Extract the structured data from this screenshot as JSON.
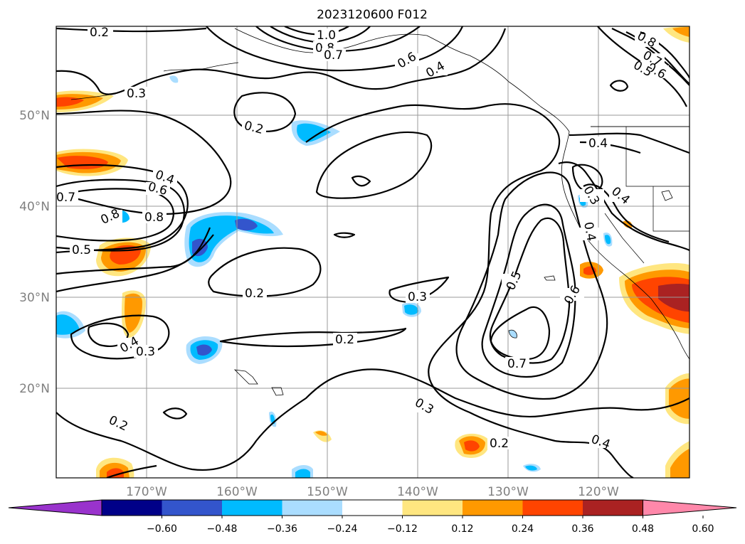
{
  "title": "2023120600 F012",
  "map": {
    "lat_labels": [
      "50°N",
      "40°N",
      "30°N",
      "20°N"
    ],
    "lon_labels": [
      "170°W",
      "160°W",
      "150°W",
      "140°W",
      "130°W",
      "120°W"
    ],
    "gridlines": true
  },
  "contour_labels": [
    "0.2",
    "1.0",
    "0.8",
    "0.7",
    "0.6",
    "0.4",
    "0.3",
    "0.2",
    "0.4",
    "0.6",
    "0.7",
    "0.8",
    "0.8",
    "0.5",
    "0.2",
    "0.3",
    "0.2",
    "0.4",
    "0.3",
    "0.5",
    "0.6",
    "0.7",
    "0.3",
    "0.2",
    "0.2",
    "0.4",
    "0.3",
    "0.4",
    "0.8",
    "0.7",
    "0.6",
    "0.5"
  ],
  "colorbar": {
    "ticks": [
      "−0.60",
      "−0.48",
      "−0.36",
      "−0.24",
      "−0.12",
      "0.12",
      "0.24",
      "0.36",
      "0.48",
      "0.60"
    ],
    "colors": [
      "#9933cc",
      "#000088",
      "#3355cc",
      "#00bbff",
      "#aaddff",
      "#ffffff",
      "#ffe680",
      "#ff9900",
      "#ff4400",
      "#aa2222",
      "#ff88aa"
    ],
    "extend": "both"
  }
}
